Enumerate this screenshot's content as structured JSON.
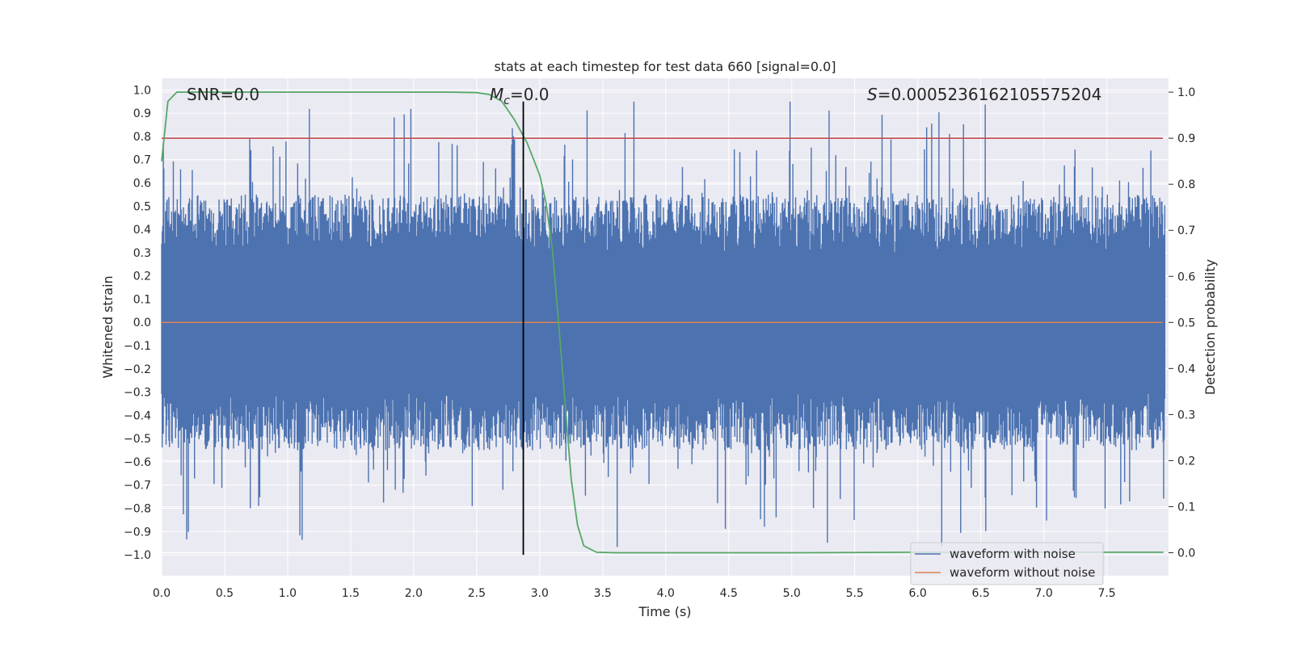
{
  "chart_data": {
    "type": "line",
    "title": "stats at each timestep for test data 660 [signal=0.0]",
    "xlabel": "Time (s)",
    "ylabel": "Whitened strain",
    "ylabel_right": "Detection probability",
    "xlim": [
      0.0,
      7.99
    ],
    "ylim": [
      -1.09,
      1.05
    ],
    "ylim_right": [
      -0.05,
      1.03
    ],
    "x_ticks": [
      "0.0",
      "0.5",
      "1.0",
      "1.5",
      "2.0",
      "2.5",
      "3.0",
      "3.5",
      "4.0",
      "4.5",
      "5.0",
      "5.5",
      "6.0",
      "6.5",
      "7.0",
      "7.5"
    ],
    "x_tick_values": [
      0.0,
      0.5,
      1.0,
      1.5,
      2.0,
      2.5,
      3.0,
      3.5,
      4.0,
      4.5,
      5.0,
      5.5,
      6.0,
      6.5,
      7.0,
      7.5
    ],
    "y_ticks": [
      "1.0",
      "0.9",
      "0.8",
      "0.7",
      "0.6",
      "0.5",
      "0.4",
      "0.3",
      "0.2",
      "0.1",
      "0.0",
      "−0.1",
      "−0.2",
      "−0.3",
      "−0.4",
      "−0.5",
      "−0.6",
      "−0.7",
      "−0.8",
      "−0.9",
      "−1.0"
    ],
    "y_tick_values": [
      1.0,
      0.9,
      0.8,
      0.7,
      0.6,
      0.5,
      0.4,
      0.3,
      0.2,
      0.1,
      0.0,
      -0.1,
      -0.2,
      -0.3,
      -0.4,
      -0.5,
      -0.6,
      -0.7,
      -0.8,
      -0.9,
      -1.0
    ],
    "y_right_ticks": [
      "1.0",
      "0.9",
      "0.8",
      "0.7",
      "0.6",
      "0.5",
      "0.4",
      "0.3",
      "0.2",
      "0.1",
      "0.0"
    ],
    "y_right_tick_values": [
      1.0,
      0.9,
      0.8,
      0.7,
      0.6,
      0.5,
      0.4,
      0.3,
      0.2,
      0.1,
      0.0
    ],
    "annotations": {
      "snr": "SNR=0.0",
      "mc_symbol": "M",
      "mc_sub": "c",
      "mc_value": "=0.0",
      "s_symbol": "S",
      "s_value": "=0.0005236162105575204"
    },
    "series": [
      {
        "name": "waveform with noise",
        "color": "#4c72b0",
        "kind": "noise",
        "amplitude_typical": 0.3,
        "peak_max": 0.95,
        "peak_min": -1.0
      },
      {
        "name": "waveform without noise",
        "color": "#dd8452",
        "kind": "constant",
        "value": 0.0
      },
      {
        "name": "detection probability",
        "color": "#55a868",
        "axis": "right",
        "x": [
          0.0,
          0.05,
          0.12,
          0.3,
          0.6,
          1.0,
          1.5,
          2.0,
          2.3,
          2.5,
          2.6,
          2.7,
          2.8,
          2.9,
          3.0,
          3.05,
          3.1,
          3.15,
          3.2,
          3.25,
          3.3,
          3.35,
          3.45,
          3.6,
          4.0,
          5.0,
          6.0,
          7.0,
          7.95
        ],
        "y": [
          0.85,
          0.98,
          1.0,
          1.0,
          1.0,
          1.0,
          1.0,
          1.0,
          1.0,
          0.999,
          0.995,
          0.98,
          0.94,
          0.89,
          0.82,
          0.76,
          0.66,
          0.5,
          0.33,
          0.16,
          0.06,
          0.015,
          0.001,
          0.0,
          0.0,
          0.0,
          0.001,
          0.001,
          0.001
        ]
      },
      {
        "name": "threshold",
        "color": "#c44e52",
        "kind": "hline",
        "axis": "right",
        "value": 0.9
      },
      {
        "name": "merger time",
        "color": "#000000",
        "kind": "vline",
        "x": 2.87,
        "y_range": [
          -1.0,
          0.95
        ]
      }
    ],
    "legend": {
      "placement": "lower-right",
      "entries": [
        "waveform with noise",
        "waveform without noise"
      ]
    },
    "colors": {
      "background": "#eaeaf2",
      "grid": "#ffffff",
      "noise": "#4c72b0",
      "clean": "#dd8452",
      "probability": "#55a868",
      "threshold": "#c44e52",
      "merger": "#000000"
    }
  }
}
